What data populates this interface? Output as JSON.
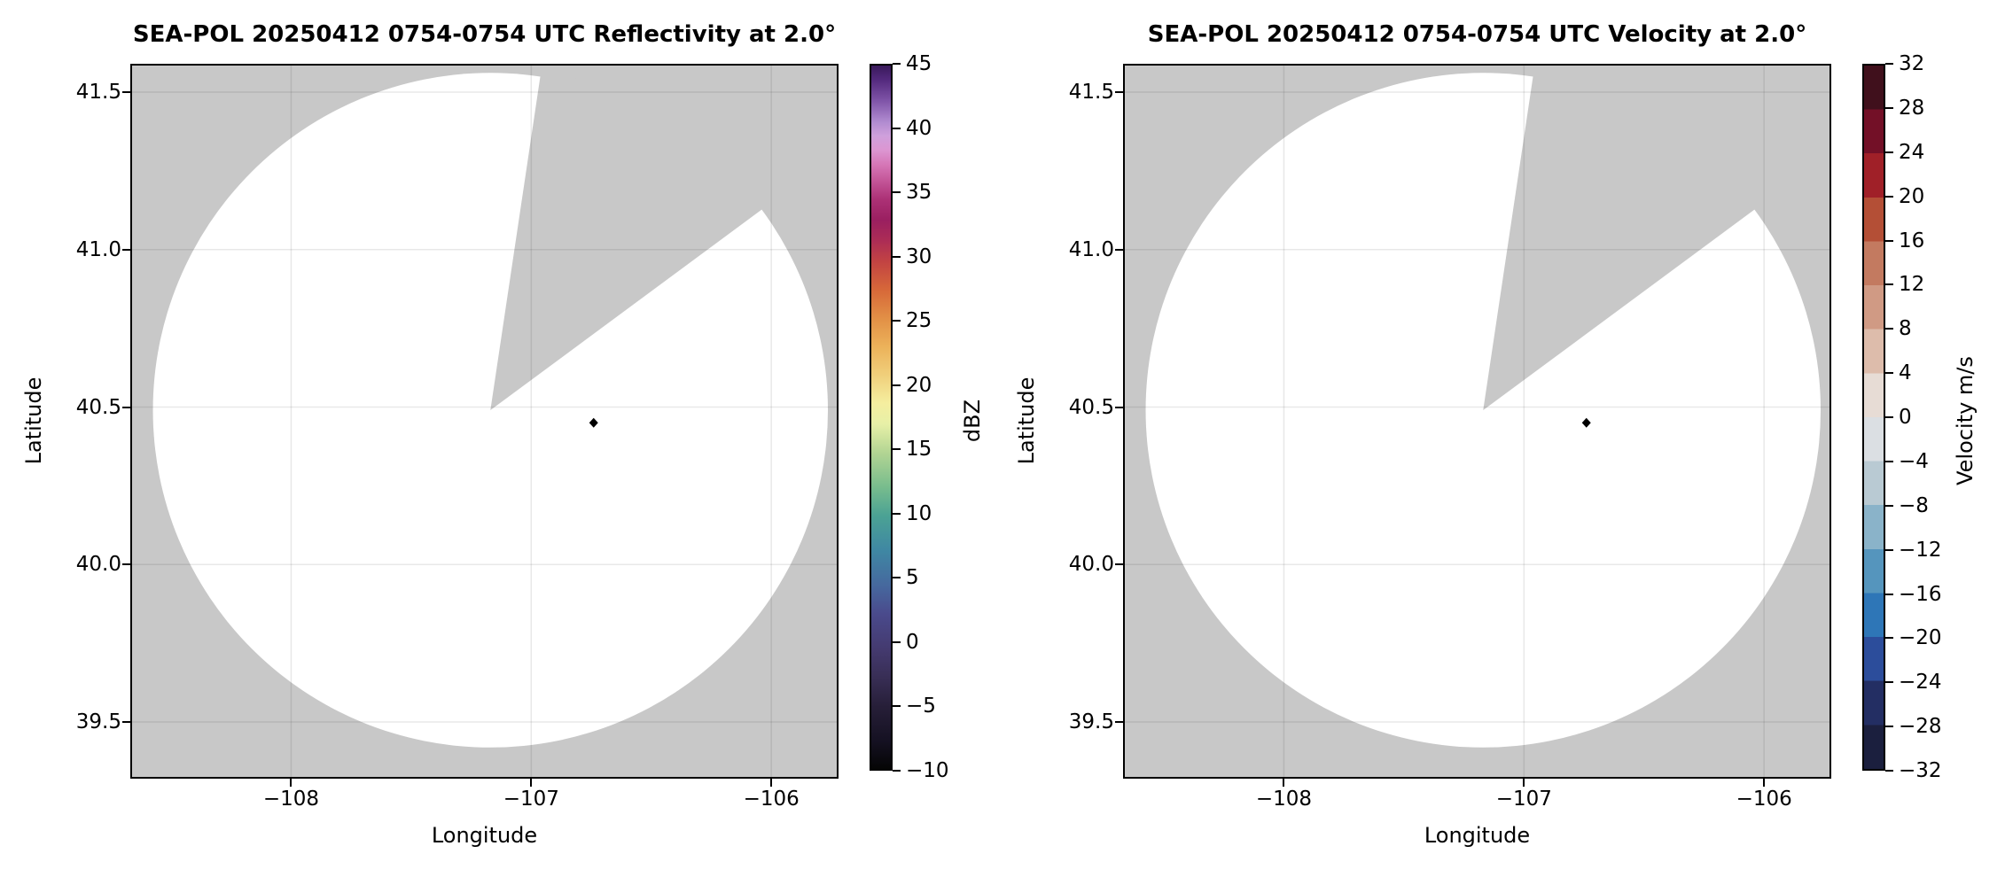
{
  "chart_data": [
    {
      "type": "heatmap",
      "field": "reflectivity",
      "title": "SEA-POL 20250412 0754-0754 UTC Reflectivity at 2.0°",
      "xlabel": "Longitude",
      "ylabel": "Latitude",
      "elevation_deg": 2.0,
      "xlim": [
        -108.67,
        -105.72
      ],
      "ylim": [
        39.32,
        41.59
      ],
      "grid": true,
      "x_ticks": {
        "values": [
          -108,
          -107,
          -106
        ],
        "labels": [
          "−108",
          "−107",
          "−106"
        ]
      },
      "y_ticks": {
        "values": [
          41.5,
          41.0,
          40.5,
          40.0,
          39.5
        ],
        "labels": [
          "41.5",
          "41.0",
          "40.5",
          "40.0",
          "39.5"
        ]
      },
      "data_coverage": {
        "radar_center": {
          "lon": -107.17,
          "lat": 40.49
        },
        "scan_radius_deg_lat": 1.071,
        "missing_sector_azimuth_deg": {
          "start": 8.5,
          "end": 53.5
        },
        "echoes": "none visible (coverage area blank / below threshold)"
      },
      "marker": {
        "lon": -106.74,
        "lat": 40.45,
        "shape": "diamond",
        "color": "#000000"
      },
      "colors": {
        "mask": "#c8c8c8",
        "background": "#ffffff",
        "grid": "rgba(0,0,0,0.09)"
      },
      "colorbar": {
        "label": "dBZ",
        "type": "continuous",
        "vmin": -10,
        "vmax": 45,
        "tick_values": [
          45,
          40,
          35,
          30,
          25,
          20,
          15,
          10,
          5,
          0,
          -5,
          -10
        ],
        "tick_labels": [
          "45",
          "40",
          "35",
          "30",
          "25",
          "20",
          "15",
          "10",
          "5",
          "0",
          "−5",
          "−10"
        ],
        "gradient_stops": [
          [
            0,
            "#050505"
          ],
          [
            4,
            "#151122"
          ],
          [
            9,
            "#271f39"
          ],
          [
            13,
            "#382e55"
          ],
          [
            17,
            "#443a6f"
          ],
          [
            22,
            "#4a4a8c"
          ],
          [
            26,
            "#46689e"
          ],
          [
            31,
            "#3f87a3"
          ],
          [
            36,
            "#4ba294"
          ],
          [
            40,
            "#77bc8d"
          ],
          [
            45,
            "#b3d593"
          ],
          [
            49,
            "#e7f0a7"
          ],
          [
            52,
            "#f5ee9f"
          ],
          [
            56,
            "#f0cf7b"
          ],
          [
            60,
            "#ecb25a"
          ],
          [
            64,
            "#e29046"
          ],
          [
            68,
            "#d76939"
          ],
          [
            72,
            "#c34442"
          ],
          [
            75,
            "#ad2d55"
          ],
          [
            78,
            "#9a1f60"
          ],
          [
            81,
            "#ac3176"
          ],
          [
            84,
            "#c75b9d"
          ],
          [
            86,
            "#d678b8"
          ],
          [
            88,
            "#dc96d2"
          ],
          [
            90,
            "#cfa0dc"
          ],
          [
            92,
            "#b08bd0"
          ],
          [
            95,
            "#7f54a8"
          ],
          [
            98,
            "#53297d"
          ],
          [
            100,
            "#391a5b"
          ]
        ]
      }
    },
    {
      "type": "heatmap",
      "field": "velocity",
      "title": "SEA-POL 20250412 0754-0754 UTC Velocity at 2.0°",
      "xlabel": "Longitude",
      "ylabel": "Latitude",
      "elevation_deg": 2.0,
      "xlim": [
        -108.67,
        -105.72
      ],
      "ylim": [
        39.32,
        41.59
      ],
      "grid": true,
      "x_ticks": {
        "values": [
          -108,
          -107,
          -106
        ],
        "labels": [
          "−108",
          "−107",
          "−106"
        ]
      },
      "y_ticks": {
        "values": [
          41.5,
          41.0,
          40.5,
          40.0,
          39.5
        ],
        "labels": [
          "41.5",
          "41.0",
          "40.5",
          "40.0",
          "39.5"
        ]
      },
      "data_coverage": {
        "radar_center": {
          "lon": -107.17,
          "lat": 40.49
        },
        "scan_radius_deg_lat": 1.071,
        "missing_sector_azimuth_deg": {
          "start": 8.5,
          "end": 53.5
        },
        "echoes": "none visible (coverage area blank / below threshold)"
      },
      "marker": {
        "lon": -106.74,
        "lat": 40.45,
        "shape": "diamond",
        "color": "#000000"
      },
      "colors": {
        "mask": "#c8c8c8",
        "background": "#ffffff",
        "grid": "rgba(0,0,0,0.09)"
      },
      "colorbar": {
        "label": "Velocity m/s",
        "type": "discrete",
        "vmin": -32,
        "vmax": 32,
        "tick_values": [
          32,
          28,
          24,
          20,
          16,
          12,
          8,
          4,
          0,
          -4,
          -8,
          -12,
          -16,
          -20,
          -24,
          -28,
          -32
        ],
        "tick_labels": [
          "32",
          "28",
          "24",
          "20",
          "16",
          "12",
          "8",
          "4",
          "0",
          "−4",
          "−8",
          "−12",
          "−16",
          "−20",
          "−24",
          "−28",
          "−32"
        ],
        "segment_colors": [
          "#1b1f3e",
          "#232e63",
          "#2c4d9b",
          "#2e76b7",
          "#5595bd",
          "#8ab3c9",
          "#b9cad3",
          "#dbdfe3",
          "#e7dcd5",
          "#ddbcab",
          "#d09a84",
          "#c37a60",
          "#b44f36",
          "#a02028",
          "#731027",
          "#40101c"
        ]
      }
    }
  ]
}
